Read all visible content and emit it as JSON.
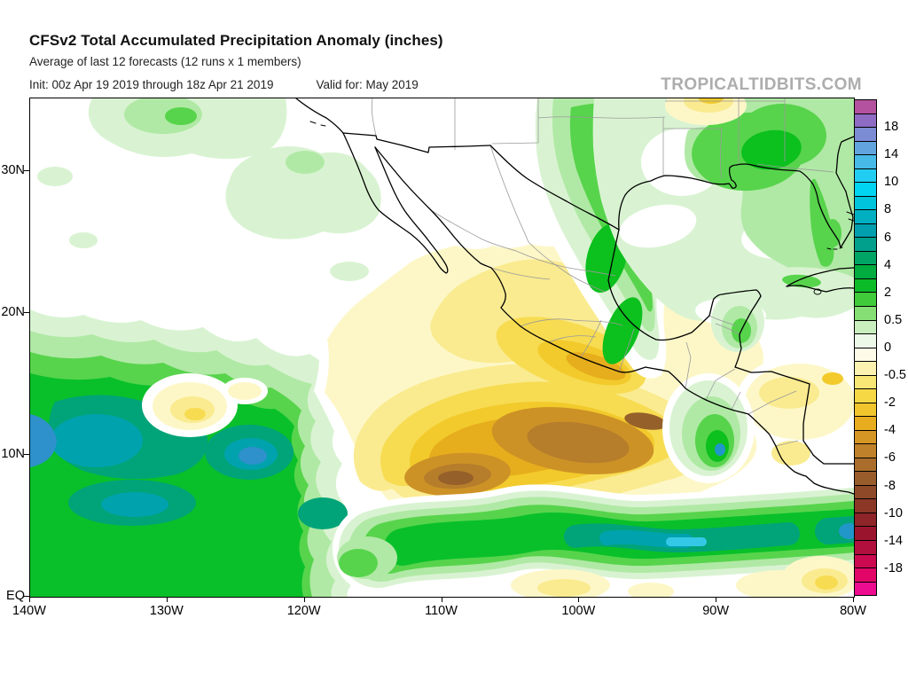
{
  "header": {
    "title": "CFSv2 Total Accumulated Precipitation Anomaly (inches)",
    "subtitle": "Average of last 12 forecasts (12 runs x 1 members)",
    "init_label": "Init: 00z Apr 19 2019 through 18z Apr 21 2019",
    "valid_label": "Valid for: May 2019",
    "watermark": "TROPICALTIDBITS.COM"
  },
  "chart_data": {
    "type": "heatmap",
    "title": "CFSv2 Total Accumulated Precipitation Anomaly (inches)",
    "subtitle": "Average of last 12 forecasts (12 runs x 1 members)",
    "init": "00z Apr 19 2019 through 18z Apr 21 2019",
    "valid_for": "May 2019",
    "units": "inches",
    "region": "Eastern Pacific, Mexico, Gulf of Mexico and Central America",
    "x_ticks": [
      "140W",
      "130W",
      "120W",
      "110W",
      "100W",
      "90W",
      "80W"
    ],
    "y_ticks": [
      "EQ",
      "10N",
      "20N",
      "30N"
    ],
    "x_range_deg_west": [
      140,
      80
    ],
    "y_range_deg_north": [
      0,
      35
    ],
    "grid": false,
    "colorbar": {
      "position": "right",
      "tick_labels": [
        "18",
        "14",
        "10",
        "8",
        "6",
        "4",
        "2",
        "0.5",
        "0",
        "-0.5",
        "-2",
        "-4",
        "-6",
        "-8",
        "-10",
        "-14",
        "-18"
      ],
      "cell_colors_top_to_bottom": [
        "#b5529f",
        "#8e6cc3",
        "#7b8bd4",
        "#62a5de",
        "#47bae8",
        "#22cdf2",
        "#00d4f2",
        "#00c3dc",
        "#00b0c2",
        "#009fae",
        "#00a08c",
        "#00a465",
        "#00ab40",
        "#0cbb28",
        "#3fcb3a",
        "#86df75",
        "#c8efbd",
        "#edf9e8",
        "#fefce8",
        "#fbf2b2",
        "#f9e775",
        "#f6d845",
        "#f1c62c",
        "#e7ad1e",
        "#d69623",
        "#bf8129",
        "#aa6d2b",
        "#995c2b",
        "#8e4a28",
        "#8b3827",
        "#8e2529",
        "#9b142e",
        "#b20e3e",
        "#ca0951",
        "#e10667",
        "#ed0c90"
      ]
    },
    "features": [
      {
        "region": "Eastern Pacific south of Mexico (8-15N, 92-115W)",
        "sign": "dry",
        "peak_inches": -6,
        "description": "Large negative anomaly; gold/brown core near 98-103W, 11-13N"
      },
      {
        "region": "Southern Mexico interior and Pacific coast",
        "sign": "dry",
        "peak_inches": -3,
        "description": "Yellow anomaly band over Guerrero/Oaxaca"
      },
      {
        "region": "ITCZ band near 3-6N from 112W to 80W",
        "sign": "wet",
        "peak_inches": 8,
        "description": "Green band with teal/cyan maxima near 95-100W"
      },
      {
        "region": "Central/eastern Pacific 5-13N west of 118W",
        "sign": "wet",
        "peak_inches": 8,
        "description": "Broad green anomaly with teal and blue cores near 10N"
      },
      {
        "region": "Northeast Mexico into south Texas",
        "sign": "wet",
        "peak_inches": 3,
        "description": "Green streak along Sierra Madre Oriental"
      },
      {
        "region": "Gulf Coast and southeastern US",
        "sign": "wet",
        "peak_inches": 3,
        "description": "Green anomaly, strongest along Mississippi/Alabama coast"
      },
      {
        "region": "Guatemala / El Salvador and offshore",
        "sign": "wet",
        "peak_inches": 4,
        "description": "Local green pocket with small blue core"
      },
      {
        "region": "Honduras / Nicaragua Caribbean side",
        "sign": "dry",
        "peak_inches": -2,
        "description": "Yellow anomaly patches"
      },
      {
        "region": "North Arkansas (top of map)",
        "sign": "dry",
        "peak_inches": -2,
        "description": "Small yellow/gold patch at map edge"
      }
    ]
  }
}
